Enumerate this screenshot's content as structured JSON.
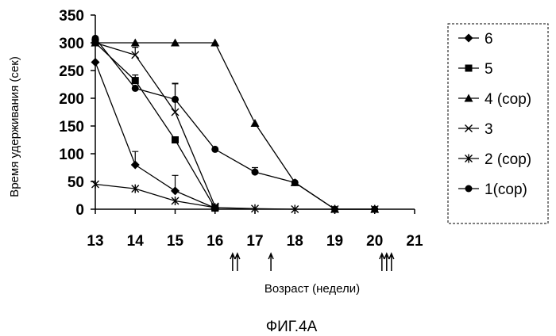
{
  "chart_data": {
    "type": "line",
    "ylabel": "Время удерживания (сек)",
    "xlabel": "Возраст (недели)",
    "caption": "ФИГ.4А",
    "xlim": [
      13,
      21
    ],
    "ylim": [
      0,
      350
    ],
    "xticks": [
      "13",
      "14",
      "15",
      "16",
      "17",
      "18",
      "19",
      "20",
      "21"
    ],
    "yticks": [
      "0",
      "50",
      "100",
      "150",
      "200",
      "250",
      "300",
      "350"
    ],
    "legend_position": "right",
    "arrows": [
      {
        "x": 16.5,
        "count": 2
      },
      {
        "x": 17.4,
        "count": 1
      },
      {
        "x": 20.3,
        "count": 3
      }
    ],
    "series": [
      {
        "name": "6",
        "marker": "diamond",
        "x": [
          13,
          14,
          15,
          16
        ],
        "y": [
          265,
          80,
          33,
          2
        ],
        "err": [
          0,
          24,
          28,
          0
        ]
      },
      {
        "name": "5",
        "marker": "square",
        "x": [
          13,
          14,
          15,
          16
        ],
        "y": [
          300,
          232,
          125,
          2
        ],
        "err": [
          0,
          10,
          0,
          0
        ]
      },
      {
        "name": "4 (cop)",
        "marker": "triangle",
        "x": [
          13,
          14,
          15,
          16,
          17,
          18,
          19,
          20
        ],
        "y": [
          300,
          300,
          300,
          300,
          155,
          48,
          0,
          0
        ],
        "err": [
          0,
          0,
          0,
          0,
          0,
          0,
          0,
          0
        ]
      },
      {
        "name": "3",
        "marker": "x",
        "x": [
          13,
          14,
          15,
          16
        ],
        "y": [
          300,
          278,
          175,
          5
        ],
        "err": [
          0,
          14,
          52,
          0
        ]
      },
      {
        "name": "2 (cop)",
        "marker": "star",
        "x": [
          13,
          14,
          15,
          16,
          17,
          18,
          19,
          20
        ],
        "y": [
          45,
          37,
          15,
          3,
          1,
          0,
          0,
          0
        ],
        "err": [
          0,
          0,
          0,
          0,
          0,
          0,
          0,
          0
        ]
      },
      {
        "name": "1(cop)",
        "marker": "circle",
        "x": [
          13,
          14,
          15,
          16,
          17,
          18,
          19,
          20
        ],
        "y": [
          308,
          218,
          198,
          108,
          67,
          48,
          0,
          0
        ],
        "err": [
          0,
          0,
          28,
          0,
          8,
          0,
          0,
          0
        ]
      }
    ]
  }
}
